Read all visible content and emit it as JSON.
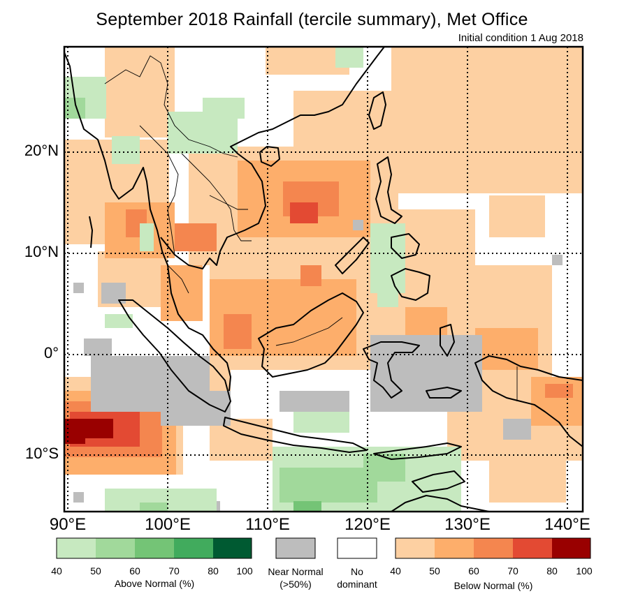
{
  "header": {
    "title": "September 2018 Rainfall (tercile summary), Met Office",
    "subtitle": "Initial condition 1 Aug 2018"
  },
  "map": {
    "region": "Southeast Asia",
    "lat_labels": [
      "20°N",
      "10°N",
      "0°",
      "10°S"
    ],
    "lon_labels": [
      "90°E",
      "100°E",
      "110°E",
      "120°E",
      "130°E",
      "140°E"
    ]
  },
  "legend": {
    "above_normal": {
      "title": "Above Normal (%)",
      "ticks": [
        "40",
        "50",
        "60",
        "70",
        "80",
        "100"
      ],
      "colors": [
        "#c7e9c0",
        "#a1d99b",
        "#74c476",
        "#41ab5d",
        "#005a32"
      ]
    },
    "near_normal": {
      "line1": "Near Normal",
      "line2": "(>50%)",
      "color": "#bdbdbd"
    },
    "no_dominant": {
      "line1": "No",
      "line2": "dominant",
      "color": "#ffffff"
    },
    "below_normal": {
      "title": "Below Normal (%)",
      "ticks": [
        "40",
        "50",
        "60",
        "70",
        "80",
        "100"
      ],
      "colors": [
        "#fdd0a2",
        "#fdae6b",
        "#f4864f",
        "#e34a33",
        "#990000"
      ]
    }
  }
}
